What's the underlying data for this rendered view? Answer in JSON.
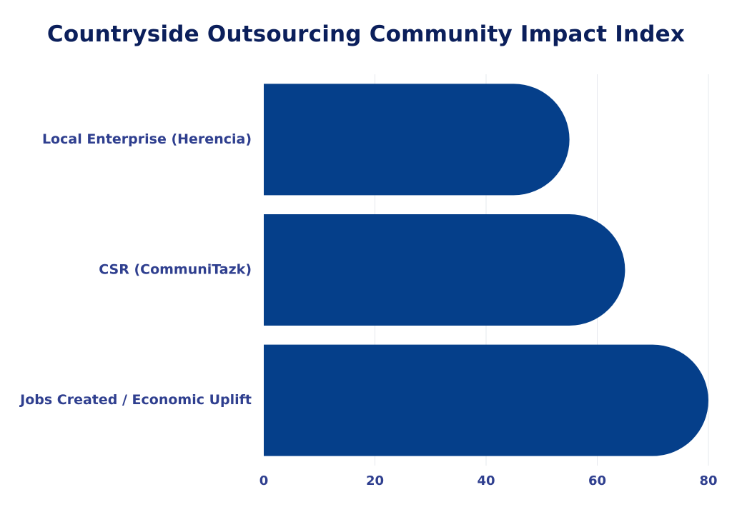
{
  "chart_data": {
    "type": "bar",
    "orientation": "horizontal",
    "title": "Countryside Outsourcing Community Impact Index",
    "categories": [
      "Local Enterprise (Herencia)",
      "CSR (CommuniTazk)",
      "Jobs Created / Economic Uplift"
    ],
    "values": [
      55,
      65,
      80
    ],
    "xlim": [
      0,
      80
    ],
    "xticks": [
      0,
      20,
      40,
      60,
      80
    ],
    "grid": true,
    "legend": "none",
    "colors": {
      "bar": "#053f8a",
      "title": "#0b1f5b",
      "labels": "#2f3f8f",
      "grid": "#e6e8ee"
    }
  }
}
